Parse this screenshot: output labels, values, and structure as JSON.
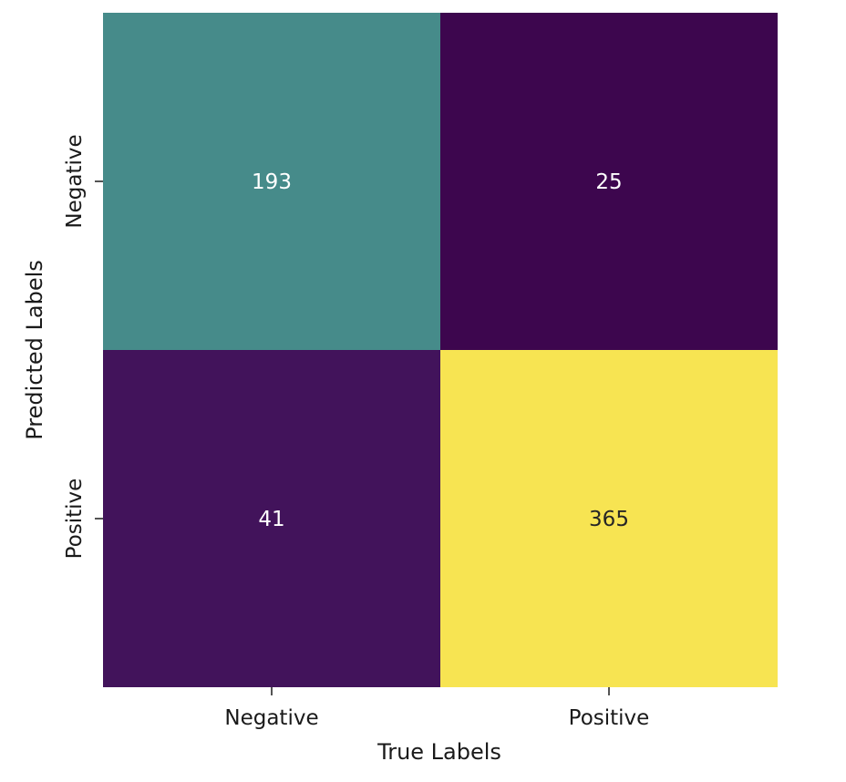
{
  "chart_data": {
    "type": "heatmap",
    "title": "",
    "xlabel": "True Labels",
    "ylabel": "Predicted Labels",
    "x_categories": [
      "Negative",
      "Positive"
    ],
    "y_categories": [
      "Negative",
      "Positive"
    ],
    "values": [
      [
        193,
        25
      ],
      [
        41,
        365
      ]
    ],
    "colormap": "viridis",
    "value_range": [
      25,
      365
    ],
    "colorbar": false,
    "grid": false,
    "cell_colors": [
      [
        "#468b8a",
        "#3d064e"
      ],
      [
        "#42135b",
        "#f7e452"
      ]
    ],
    "annotation_colors": {
      "on_dark": "#ffffff",
      "on_light": "#262626"
    }
  }
}
